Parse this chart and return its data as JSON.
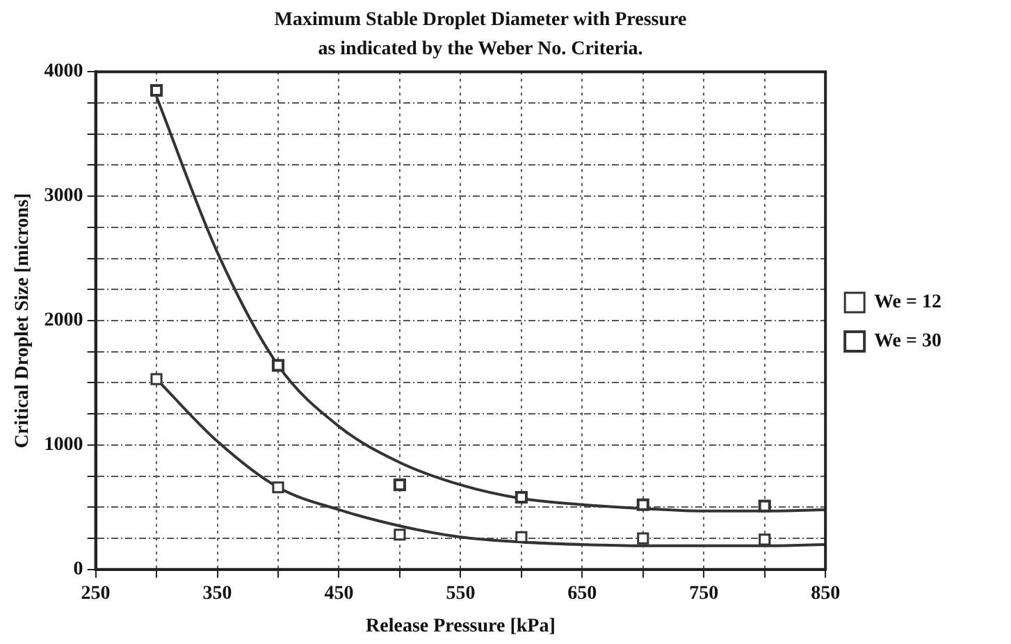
{
  "chart_data": {
    "type": "scatter",
    "title": "Maximum Stable Droplet Diameter with Pressure",
    "subtitle": "as indicated by the Weber No. Criteria.",
    "xlabel": "Release Pressure [kPa]",
    "ylabel": "Critical Droplet Size [microns]",
    "x": [
      300,
      400,
      500,
      600,
      700,
      800
    ],
    "series": [
      {
        "name": "We = 12",
        "color": "#333333",
        "values": [
          1530,
          660,
          280,
          260,
          250,
          240
        ]
      },
      {
        "name": "We = 30",
        "color": "#333333",
        "values": [
          3850,
          1640,
          680,
          580,
          520,
          510
        ]
      },
      {
        "type": "line",
        "marker": "none",
        "color": "#333333",
        "x": [
          300,
          350,
          400,
          450,
          500,
          550,
          600,
          650,
          700,
          750,
          800,
          850
        ],
        "values": [
          1530,
          1030,
          660,
          480,
          350,
          260,
          220,
          200,
          190,
          190,
          190,
          200
        ]
      },
      {
        "type": "line",
        "marker": "none",
        "color": "#333333",
        "x": [
          300,
          350,
          400,
          450,
          500,
          550,
          600,
          650,
          700,
          750,
          800,
          850
        ],
        "values": [
          3800,
          2550,
          1640,
          1150,
          860,
          680,
          570,
          520,
          490,
          470,
          470,
          480
        ]
      }
    ],
    "xlim": [
      250,
      850
    ],
    "xticks": [
      250,
      {
        "value": 300,
        "label": null
      },
      350,
      {
        "value": 400,
        "label": null
      },
      450,
      {
        "value": 500,
        "label": null
      },
      550,
      {
        "value": 600,
        "label": null
      },
      650,
      {
        "value": 700,
        "label": null
      },
      750,
      {
        "value": 800,
        "label": null
      },
      850
    ],
    "ylim": [
      0,
      4000
    ],
    "yticks": [
      0,
      {
        "value": 250,
        "label": null
      },
      {
        "value": 500,
        "label": null
      },
      {
        "value": 750,
        "label": null
      },
      1000,
      {
        "value": 1250,
        "label": null
      },
      {
        "value": 1500,
        "label": null
      },
      {
        "value": 1750,
        "label": null
      },
      2000,
      {
        "value": 2250,
        "label": null
      },
      {
        "value": 2500,
        "label": null
      },
      {
        "value": 2750,
        "label": null
      },
      3000,
      {
        "value": 3250,
        "label": null
      },
      {
        "value": 3500,
        "label": null
      },
      {
        "value": 3750,
        "label": null
      },
      4000
    ],
    "grid": true,
    "legend": "right",
    "marker": "square",
    "line_style": "solid"
  }
}
